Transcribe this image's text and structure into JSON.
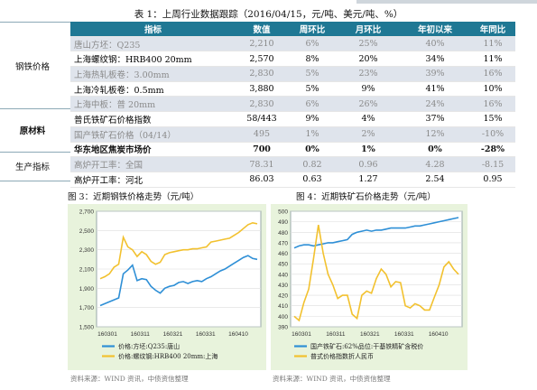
{
  "table": {
    "title": "表 1：上周行业数据跟踪（2016/04/15，元/吨、美元/吨、%）",
    "headers": [
      "指标",
      "数值",
      "周环比",
      "月环比",
      "年初以来",
      "年同比"
    ],
    "groups": [
      "钢铁价格",
      "原材料",
      "生产指标"
    ],
    "rows": [
      {
        "label": "唐山方坯：Q235",
        "value": "2,210",
        "wow": "6%",
        "mom": "25%",
        "ytd": "40%",
        "yoy": "11%",
        "style": "muted"
      },
      {
        "label": "上海螺纹钢：HRB400 20mm",
        "value": "2,570",
        "wow": "8%",
        "mom": "20%",
        "ytd": "34%",
        "yoy": "11%",
        "style": "emph"
      },
      {
        "label": "上海热轧板卷：3.00mm",
        "value": "2,830",
        "wow": "5%",
        "mom": "23%",
        "ytd": "39%",
        "yoy": "16%",
        "style": "muted"
      },
      {
        "label": "上海冷轧板卷：0.5mm",
        "value": "3,880",
        "wow": "5%",
        "mom": "9%",
        "ytd": "41%",
        "yoy": "10%",
        "style": "emph"
      },
      {
        "label": "上海中板：普 20mm",
        "value": "2,830",
        "wow": "6%",
        "mom": "26%",
        "ytd": "24%",
        "yoy": "16%",
        "style": "muted"
      },
      {
        "label": "普氏铁矿石价格指数",
        "value": "58/443",
        "wow": "9%",
        "mom": "4%",
        "ytd": "37%",
        "yoy": "15%",
        "style": "emph"
      },
      {
        "label": "国产铁矿石价格（04/14）",
        "value": "495",
        "wow": "1%",
        "mom": "2%",
        "ytd": "12%",
        "yoy": "-10%",
        "style": "muted"
      },
      {
        "label": "华东地区焦炭市场价",
        "value": "700",
        "wow": "0%",
        "mom": "1%",
        "ytd": "0%",
        "yoy": "-28%",
        "style": "bold"
      },
      {
        "label": "高炉开工率：全国",
        "value": "78.31",
        "wow": "0.82",
        "mom": "0.96",
        "ytd": "4.28",
        "yoy": "-8.15",
        "style": "muted"
      },
      {
        "label": "高炉开工率：河北",
        "value": "86.03",
        "wow": "0.63",
        "mom": "1.27",
        "ytd": "2.54",
        "yoy": "0.95",
        "style": "emph"
      }
    ]
  },
  "chart1": {
    "title": "图 3：近期钢铁价格走势（元/吨）",
    "source": "资料来源：WIND 资讯，中债资信整理"
  },
  "chart2": {
    "title": "图 4：近期铁矿石价格走势（元/吨）",
    "source": "资料来源：WIND 资讯，中债资信整理"
  },
  "chart_data": [
    {
      "type": "line",
      "title": "",
      "x_ticks": [
        "160301",
        "160311",
        "160321",
        "160331",
        "160410"
      ],
      "ylim": [
        1500,
        2700
      ],
      "y_ticks": [
        "1,500",
        "1,700",
        "1,900",
        "2,100",
        "2,300",
        "2,500",
        "2,700"
      ],
      "series": [
        {
          "name": "价格:方坯:Q235:唐山",
          "color": "#2e8fd6",
          "values": [
            1720,
            1740,
            1760,
            1780,
            1800,
            2050,
            2090,
            2140,
            1980,
            2000,
            1990,
            1920,
            1880,
            1850,
            1900,
            1920,
            1930,
            1960,
            1970,
            1950,
            1970,
            1980,
            1970,
            2000,
            2020,
            2050,
            2080,
            2100,
            2130,
            2160,
            2190,
            2220,
            2240,
            2210,
            2200
          ]
        },
        {
          "name": "价格:螺纹钢:HRB400 20mm:上海",
          "color": "#f2c12e",
          "values": [
            2000,
            2020,
            2050,
            2120,
            2150,
            2430,
            2330,
            2300,
            2230,
            2280,
            2250,
            2180,
            2150,
            2170,
            2250,
            2270,
            2280,
            2290,
            2300,
            2300,
            2310,
            2310,
            2320,
            2330,
            2380,
            2390,
            2400,
            2410,
            2420,
            2450,
            2480,
            2520,
            2560,
            2580,
            2570
          ]
        }
      ]
    },
    {
      "type": "line",
      "title": "",
      "x_ticks": [
        "160301",
        "160311",
        "160321",
        "160331",
        "160410"
      ],
      "ylim": [
        390,
        500
      ],
      "y_ticks": [
        "390",
        "400",
        "410",
        "420",
        "430",
        "440",
        "450",
        "460",
        "470",
        "480",
        "490",
        "500"
      ],
      "series": [
        {
          "name": "国产铁矿石:62%品位:干基铁精矿含税价",
          "color": "#2e8fd6",
          "values": [
            465,
            467,
            468,
            468,
            467,
            468,
            469,
            470,
            470,
            471,
            472,
            473,
            478,
            480,
            481,
            482,
            481,
            482,
            482,
            483,
            484,
            484,
            484,
            484,
            485,
            486,
            486,
            487,
            488,
            489,
            490,
            491,
            492,
            493,
            494
          ]
        },
        {
          "name": "普式价格指数折人民币",
          "color": "#f2c12e",
          "values": [
            400,
            396,
            413,
            426,
            455,
            487,
            460,
            440,
            430,
            417,
            420,
            420,
            402,
            398,
            420,
            424,
            422,
            436,
            445,
            440,
            428,
            433,
            432,
            410,
            408,
            412,
            410,
            406,
            406,
            418,
            430,
            447,
            452,
            445,
            440
          ]
        }
      ]
    }
  ]
}
